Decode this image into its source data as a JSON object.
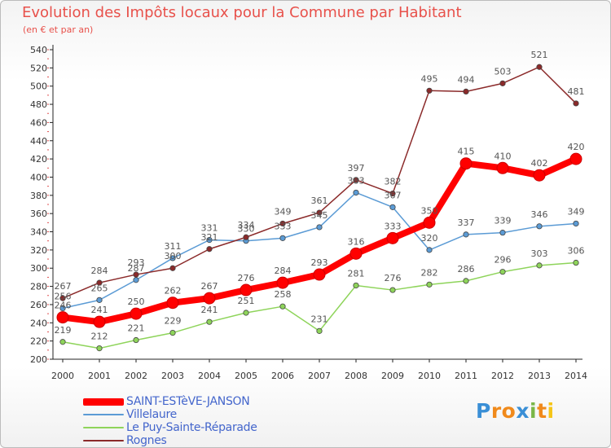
{
  "header": {
    "title": "Evolution des Impôts locaux pour la Commune par Habitant",
    "subtitle": "(en € et par an)"
  },
  "chart_data": {
    "type": "line",
    "title": "Evolution des Impôts locaux pour la Commune par Habitant",
    "subtitle": "(en € et par an)",
    "x": [
      "2000",
      "2001",
      "2002",
      "2003",
      "2004",
      "2005",
      "2006",
      "2007",
      "2008",
      "2009",
      "2010",
      "2011",
      "2012",
      "2013",
      "2014"
    ],
    "ylim": [
      200,
      540
    ],
    "ytick_step": 20,
    "grid": false,
    "series": [
      {
        "name": "SAINT-ESTèVE-JANSON",
        "color": "#ff0000",
        "values": [
          246,
          241,
          250,
          262,
          267,
          276,
          284,
          293,
          316,
          333,
          350,
          415,
          410,
          402,
          420
        ],
        "labels": [
          "246",
          "241",
          "250",
          "262",
          "267",
          "276",
          "284",
          "293",
          "316",
          "333",
          "350",
          "415",
          "410",
          "402",
          "420"
        ]
      },
      {
        "name": "Villelaure",
        "color": "#5b9bd5",
        "values": [
          256,
          265,
          287,
          311,
          331,
          330,
          333,
          345,
          383,
          367,
          320,
          337,
          339,
          346,
          349
        ],
        "labels": [
          "256",
          "265",
          "287",
          "311",
          "331",
          "330",
          "333",
          "345",
          "383",
          "367",
          "320",
          "337",
          "339",
          "346",
          "349"
        ]
      },
      {
        "name": "Le Puy-Sainte-Réparade",
        "color": "#8ed45a",
        "values": [
          219,
          212,
          221,
          229,
          241,
          251,
          258,
          231,
          281,
          276,
          282,
          286,
          296,
          303,
          306
        ],
        "labels": [
          "219",
          "212",
          "221",
          "229",
          "241",
          "251",
          "258",
          "231",
          "281",
          "276",
          "282",
          "286",
          "296",
          "303",
          "306"
        ]
      },
      {
        "name": "Rognes",
        "color": "#8b2a2a",
        "values": [
          267,
          284,
          293,
          300,
          321,
          334,
          349,
          361,
          397,
          382,
          495,
          494,
          503,
          521,
          481
        ],
        "labels": [
          "267",
          "284",
          "293",
          "300",
          "321",
          "334",
          "349",
          "361",
          "397",
          "382",
          "495",
          "494",
          "503",
          "521",
          "481"
        ]
      }
    ],
    "legend_position": "bottom-left"
  },
  "logo": {
    "text": "Proxiti"
  }
}
